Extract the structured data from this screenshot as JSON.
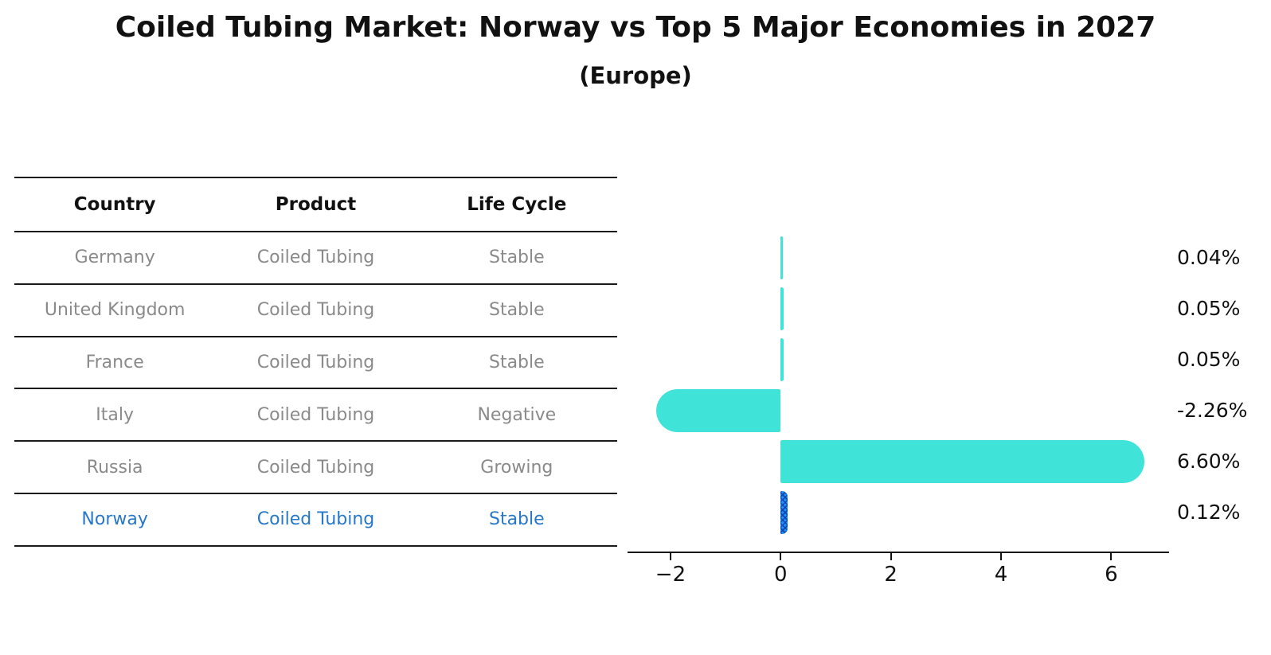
{
  "title": "Coiled Tubing Market: Norway vs Top 5 Major Economies in 2027",
  "subtitle": "(Europe)",
  "table": {
    "headers": [
      "Country",
      "Product",
      "Life Cycle"
    ],
    "rows": [
      [
        "Germany",
        "Coiled Tubing",
        "Stable"
      ],
      [
        "United Kingdom",
        "Coiled Tubing",
        "Stable"
      ],
      [
        "France",
        "Coiled Tubing",
        "Stable"
      ],
      [
        "Italy",
        "Coiled Tubing",
        "Negative"
      ],
      [
        "Russia",
        "Coiled Tubing",
        "Growing"
      ],
      [
        "Norway",
        "Coiled Tubing",
        "Stable"
      ]
    ],
    "highlighted_row": "Norway"
  },
  "chart_data": {
    "type": "bar",
    "orientation": "horizontal",
    "categories": [
      "Germany",
      "United Kingdom",
      "France",
      "Italy",
      "Russia",
      "Norway"
    ],
    "values": [
      0.04,
      0.05,
      0.05,
      -2.26,
      6.6,
      0.12
    ],
    "value_labels": [
      "0.04%",
      "0.05%",
      "0.05%",
      "-2.26%",
      "6.60%",
      "0.12%"
    ],
    "xticks": [
      -2,
      0,
      2,
      4,
      6
    ],
    "xtick_labels": [
      "−2",
      "0",
      "2",
      "4",
      "6"
    ],
    "xlim": [
      -2.78,
      7.05
    ],
    "grid": false,
    "legend": false,
    "bar_color": "#40E3D8",
    "highlight_bar_color": "#1E90FF",
    "highlight_index": 5,
    "title": "Coiled Tubing Market: Norway vs Top 5 Major Economies in 2027",
    "subtitle": "(Europe)",
    "xlabel": "",
    "ylabel": ""
  },
  "colors": {
    "title_text": "#111111",
    "table_text": "#8a8a8a",
    "highlight_text": "#2878C8",
    "axis": "#111111"
  }
}
